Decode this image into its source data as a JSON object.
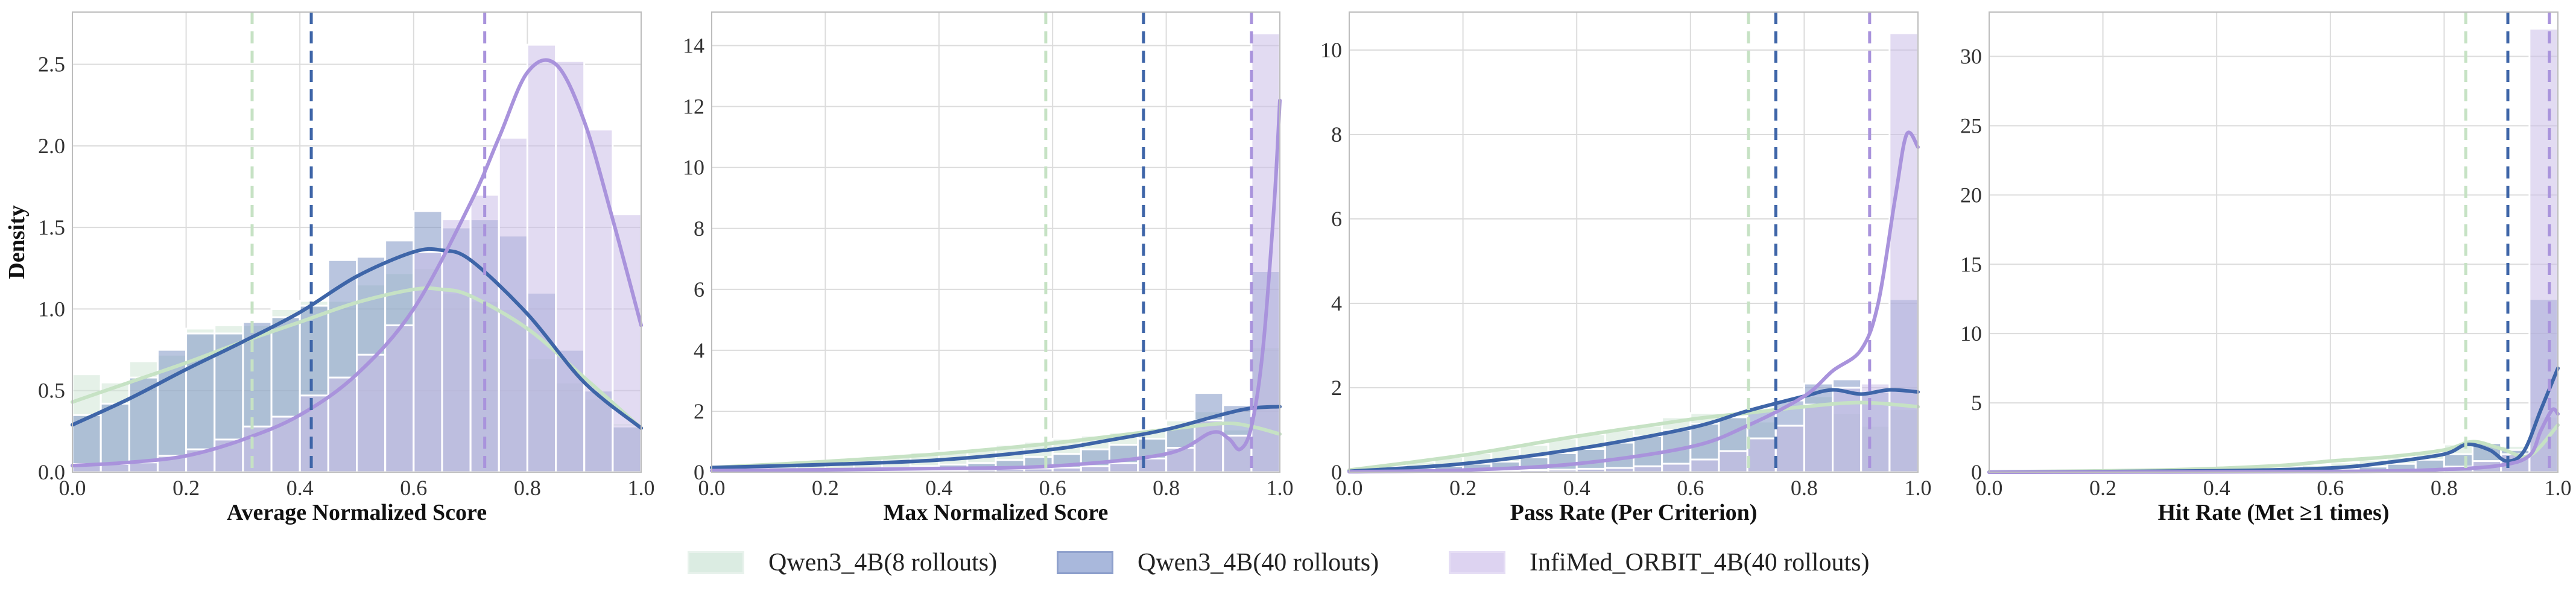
{
  "colors": {
    "qwen8": "#cfe6d6",
    "qwen40": "#7f96c4",
    "orbit": "#cbbde8",
    "qwen8_line": "#c6e2c4",
    "qwen40_line": "#3e65a8",
    "orbit_line": "#a993dc"
  },
  "legend": {
    "items": [
      {
        "label": "Qwen3_4B(8 rollouts)",
        "color": "#cfe6d6"
      },
      {
        "label": "Qwen3_4B(40 rollouts)",
        "color": "#7f96c4"
      },
      {
        "label": "InfiMed_ORBIT_4B(40 rollouts)",
        "color": "#cbbde8"
      }
    ],
    "placement": "bottom-center"
  },
  "chart_data": [
    {
      "type": "histogram",
      "xlabel": "Average Normalized Score",
      "ylabel": "Density",
      "xlim": [
        0,
        1
      ],
      "ylim": [
        0,
        2.82
      ],
      "xticks": [
        "0.0",
        "0.2",
        "0.4",
        "0.6",
        "0.8",
        "1.0"
      ],
      "yticks": [
        "0.0",
        "0.5",
        "1.0",
        "1.5",
        "2.0",
        "2.5"
      ],
      "ytick_values": [
        0,
        0.5,
        1.0,
        1.5,
        2.0,
        2.5
      ],
      "grid": true,
      "bin_edges": [
        0.0,
        0.05,
        0.1,
        0.15,
        0.2,
        0.25,
        0.3,
        0.35,
        0.4,
        0.45,
        0.5,
        0.55,
        0.6,
        0.65,
        0.7,
        0.75,
        0.8,
        0.85,
        0.9,
        0.95,
        1.0
      ],
      "series": [
        {
          "key": "qwen8",
          "hist": [
            0.6,
            0.55,
            0.68,
            0.72,
            0.88,
            0.9,
            0.9,
            1.0,
            1.05,
            1.05,
            1.15,
            1.22,
            1.25,
            1.1,
            1.05,
            1.0,
            0.7,
            0.55,
            0.45,
            0.3
          ],
          "kde_x": [
            0,
            0.1,
            0.2,
            0.3,
            0.4,
            0.5,
            0.6,
            0.65,
            0.7,
            0.8,
            0.9,
            1.0
          ],
          "kde_y": [
            0.43,
            0.55,
            0.67,
            0.8,
            0.92,
            1.04,
            1.12,
            1.12,
            1.08,
            0.88,
            0.58,
            0.27
          ],
          "mean": 0.316
        },
        {
          "key": "qwen40",
          "hist": [
            0.35,
            0.42,
            0.58,
            0.75,
            0.85,
            0.85,
            0.92,
            0.95,
            1.02,
            1.3,
            1.32,
            1.42,
            1.6,
            1.5,
            1.55,
            1.45,
            1.1,
            0.75,
            0.5,
            0.28
          ],
          "kde_x": [
            0,
            0.1,
            0.2,
            0.3,
            0.4,
            0.5,
            0.6,
            0.65,
            0.7,
            0.8,
            0.9,
            1.0
          ],
          "kde_y": [
            0.29,
            0.45,
            0.63,
            0.8,
            0.98,
            1.2,
            1.35,
            1.36,
            1.3,
            0.97,
            0.55,
            0.27
          ],
          "mean": 0.42
        },
        {
          "key": "orbit",
          "hist": [
            0.05,
            0.05,
            0.06,
            0.1,
            0.14,
            0.2,
            0.28,
            0.34,
            0.47,
            0.58,
            0.72,
            0.9,
            1.35,
            1.55,
            1.7,
            2.05,
            2.62,
            2.52,
            2.1,
            1.58
          ],
          "kde_x": [
            0,
            0.1,
            0.2,
            0.3,
            0.4,
            0.5,
            0.6,
            0.7,
            0.75,
            0.8,
            0.85,
            0.9,
            0.95,
            1.0
          ],
          "kde_y": [
            0.04,
            0.06,
            0.1,
            0.2,
            0.35,
            0.6,
            1.0,
            1.65,
            2.05,
            2.45,
            2.5,
            2.15,
            1.55,
            0.9
          ],
          "mean": 0.725
        }
      ]
    },
    {
      "type": "histogram",
      "xlabel": "Max Normalized Score",
      "ylabel": "",
      "xlim": [
        0,
        1
      ],
      "ylim": [
        0,
        15.1
      ],
      "xticks": [
        "0.0",
        "0.2",
        "0.4",
        "0.6",
        "0.8",
        "1.0"
      ],
      "yticks": [
        "0",
        "2",
        "4",
        "6",
        "8",
        "10",
        "12",
        "14"
      ],
      "ytick_values": [
        0,
        2,
        4,
        6,
        8,
        10,
        12,
        14
      ],
      "grid": true,
      "bin_edges": [
        0.0,
        0.05,
        0.1,
        0.15,
        0.2,
        0.25,
        0.3,
        0.35,
        0.4,
        0.45,
        0.5,
        0.55,
        0.6,
        0.65,
        0.7,
        0.75,
        0.8,
        0.85,
        0.9,
        0.95,
        1.0
      ],
      "series": [
        {
          "key": "qwen8",
          "hist": [
            0.1,
            0.15,
            0.2,
            0.3,
            0.35,
            0.45,
            0.55,
            0.65,
            0.7,
            0.75,
            0.9,
            1.0,
            1.1,
            1.2,
            1.3,
            1.35,
            1.7,
            2.0,
            1.4,
            4.1
          ],
          "kde_x": [
            0,
            0.2,
            0.4,
            0.6,
            0.8,
            0.9,
            0.95,
            1.0
          ],
          "kde_y": [
            0.15,
            0.35,
            0.6,
            0.95,
            1.4,
            1.6,
            1.5,
            1.25
          ],
          "mean": 0.588
        },
        {
          "key": "qwen40",
          "hist": [
            0.05,
            0.05,
            0.06,
            0.08,
            0.1,
            0.12,
            0.15,
            0.2,
            0.25,
            0.3,
            0.4,
            0.5,
            0.6,
            0.75,
            0.9,
            1.1,
            1.5,
            2.6,
            2.2,
            6.6
          ],
          "kde_x": [
            0,
            0.2,
            0.4,
            0.6,
            0.7,
            0.8,
            0.9,
            0.95,
            1.0
          ],
          "kde_y": [
            0.15,
            0.25,
            0.4,
            0.75,
            1.05,
            1.4,
            1.9,
            2.1,
            2.15
          ],
          "mean": 0.76
        },
        {
          "key": "orbit",
          "hist": [
            0.02,
            0.02,
            0.02,
            0.03,
            0.03,
            0.04,
            0.05,
            0.05,
            0.06,
            0.08,
            0.1,
            0.12,
            0.15,
            0.2,
            0.3,
            0.45,
            0.8,
            1.7,
            1.2,
            14.4
          ],
          "kde_x": [
            0,
            0.2,
            0.4,
            0.6,
            0.8,
            0.88,
            0.91,
            0.93,
            0.95,
            0.97,
            0.99,
            1.0
          ],
          "kde_y": [
            0.05,
            0.08,
            0.12,
            0.2,
            0.6,
            1.3,
            1.1,
            0.75,
            1.5,
            4.0,
            8.8,
            12.2
          ],
          "mean": 0.95
        }
      ]
    },
    {
      "type": "histogram",
      "xlabel": "Pass Rate (Per Criterion)",
      "ylabel": "",
      "xlim": [
        0,
        1
      ],
      "ylim": [
        0,
        10.9
      ],
      "xticks": [
        "0.0",
        "0.2",
        "0.4",
        "0.6",
        "0.8",
        "1.0"
      ],
      "yticks": [
        "0",
        "2",
        "4",
        "6",
        "8",
        "10"
      ],
      "ytick_values": [
        0,
        2,
        4,
        6,
        8,
        10
      ],
      "grid": true,
      "bin_edges": [
        0.0,
        0.05,
        0.1,
        0.15,
        0.2,
        0.25,
        0.3,
        0.35,
        0.4,
        0.45,
        0.5,
        0.55,
        0.6,
        0.65,
        0.7,
        0.75,
        0.8,
        0.85,
        0.9,
        0.95,
        1.0
      ],
      "series": [
        {
          "key": "qwen8",
          "hist": [
            0.1,
            0.15,
            0.25,
            0.35,
            0.45,
            0.55,
            0.65,
            0.8,
            0.9,
            1.0,
            1.1,
            1.3,
            1.4,
            1.3,
            1.2,
            1.1,
            1.8,
            1.4,
            1.1,
            1.5
          ],
          "kde_x": [
            0,
            0.2,
            0.4,
            0.6,
            0.7,
            0.8,
            0.9,
            1.0
          ],
          "kde_y": [
            0.05,
            0.4,
            0.85,
            1.25,
            1.4,
            1.55,
            1.65,
            1.55
          ],
          "mean": 0.702
        },
        {
          "key": "qwen40",
          "hist": [
            0.05,
            0.08,
            0.1,
            0.15,
            0.2,
            0.25,
            0.35,
            0.45,
            0.55,
            0.7,
            0.85,
            1.0,
            1.15,
            1.3,
            1.5,
            1.7,
            2.1,
            2.2,
            1.9,
            4.1
          ],
          "kde_x": [
            0,
            0.2,
            0.4,
            0.6,
            0.7,
            0.8,
            0.85,
            0.9,
            0.95,
            1.0
          ],
          "kde_y": [
            0.02,
            0.2,
            0.55,
            1.05,
            1.45,
            1.8,
            1.95,
            1.85,
            1.95,
            1.9
          ],
          "mean": 0.75
        },
        {
          "key": "orbit",
          "hist": [
            0.01,
            0.01,
            0.02,
            0.02,
            0.03,
            0.04,
            0.05,
            0.06,
            0.08,
            0.1,
            0.14,
            0.2,
            0.3,
            0.5,
            0.8,
            1.1,
            1.6,
            2.0,
            2.1,
            10.4
          ],
          "kde_x": [
            0,
            0.2,
            0.4,
            0.6,
            0.7,
            0.8,
            0.85,
            0.9,
            0.93,
            0.96,
            0.98,
            1.0
          ],
          "kde_y": [
            0.01,
            0.05,
            0.2,
            0.6,
            1.1,
            1.8,
            2.4,
            2.9,
            4.0,
            6.5,
            8.0,
            7.7
          ],
          "mean": 0.915
        }
      ]
    },
    {
      "type": "histogram",
      "xlabel": "Hit Rate (Met ≥1 times)",
      "ylabel": "",
      "xlim": [
        0,
        1
      ],
      "ylim": [
        0,
        33.2
      ],
      "xticks": [
        "0.0",
        "0.2",
        "0.4",
        "0.6",
        "0.8",
        "1.0"
      ],
      "yticks": [
        "0",
        "5",
        "10",
        "15",
        "20",
        "25",
        "30"
      ],
      "ytick_values": [
        0,
        5,
        10,
        15,
        20,
        25,
        30
      ],
      "grid": true,
      "bin_edges": [
        0.0,
        0.05,
        0.1,
        0.15,
        0.2,
        0.25,
        0.3,
        0.35,
        0.4,
        0.45,
        0.5,
        0.55,
        0.6,
        0.65,
        0.7,
        0.75,
        0.8,
        0.85,
        0.9,
        0.95,
        1.0
      ],
      "series": [
        {
          "key": "qwen8",
          "hist": [
            0.0,
            0.0,
            0.0,
            0.0,
            0.0,
            0.0,
            0.05,
            0.1,
            0.15,
            0.25,
            0.35,
            0.5,
            0.7,
            0.9,
            1.1,
            1.4,
            2.0,
            2.1,
            1.9,
            4.0
          ],
          "kde_x": [
            0,
            0.3,
            0.5,
            0.6,
            0.7,
            0.8,
            0.85,
            0.9,
            0.95,
            1.0
          ],
          "kde_y": [
            0.02,
            0.15,
            0.45,
            0.8,
            1.1,
            1.6,
            2.2,
            1.7,
            1.2,
            3.4
          ],
          "mean": 0.838
        },
        {
          "key": "qwen40",
          "hist": [
            0.0,
            0.0,
            0.0,
            0.0,
            0.0,
            0.0,
            0.0,
            0.0,
            0.02,
            0.05,
            0.1,
            0.15,
            0.25,
            0.4,
            0.6,
            0.9,
            1.3,
            2.1,
            1.6,
            12.5
          ],
          "kde_x": [
            0,
            0.4,
            0.6,
            0.7,
            0.8,
            0.84,
            0.88,
            0.91,
            0.94,
            0.97,
            1.0
          ],
          "kde_y": [
            0.0,
            0.1,
            0.3,
            0.7,
            1.3,
            2.0,
            1.6,
            0.8,
            1.5,
            4.5,
            7.5
          ],
          "mean": 0.912
        },
        {
          "key": "orbit",
          "hist": [
            0.0,
            0.0,
            0.0,
            0.0,
            0.0,
            0.0,
            0.0,
            0.0,
            0.0,
            0.0,
            0.0,
            0.02,
            0.04,
            0.08,
            0.12,
            0.2,
            0.4,
            0.8,
            1.3,
            32.0
          ],
          "kde_x": [
            0,
            0.6,
            0.8,
            0.9,
            0.95,
            0.97,
            0.99,
            1.0
          ],
          "kde_y": [
            0.0,
            0.05,
            0.2,
            0.5,
            1.2,
            3.0,
            4.5,
            4.2
          ],
          "mean": 0.985
        }
      ]
    }
  ]
}
